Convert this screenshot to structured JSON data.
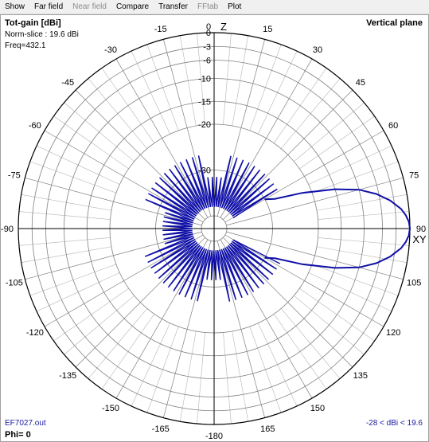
{
  "menu": {
    "items": [
      {
        "label": "Show",
        "enabled": true
      },
      {
        "label": "Far field",
        "enabled": true
      },
      {
        "label": "Near field",
        "enabled": false
      },
      {
        "label": "Compare",
        "enabled": true
      },
      {
        "label": "Transfer",
        "enabled": true
      },
      {
        "label": "FFtab",
        "enabled": false
      },
      {
        "label": "Plot",
        "enabled": true
      }
    ]
  },
  "info": {
    "title": "Tot-gain [dBi]",
    "norm_slice": "Norm-slice : 19.6 dBi",
    "freq": "Freq=432.1",
    "plane": "Vertical plane",
    "file": "EF7027.out",
    "phi": "Phi= 0",
    "range": "-28 < dBi < 19.6"
  },
  "colors": {
    "trace": "#1010a8",
    "grid": "#b4b4b4",
    "axis": "#000000"
  },
  "chart_data": {
    "type": "polar",
    "units": "dBi",
    "max_gain_dbi": 19.6,
    "min_gain_dbi": -28,
    "radial_labels": [
      "0",
      "-3",
      "-6",
      "-10",
      "-15",
      "-20",
      "-30"
    ],
    "radial_values": [
      0,
      -3,
      -6,
      -10,
      -15,
      -20,
      -30
    ],
    "angle_ticks": [
      0,
      15,
      30,
      45,
      60,
      75,
      90,
      105,
      120,
      135,
      150,
      165,
      180,
      -165,
      -150,
      -135,
      -120,
      -105,
      -90,
      -75,
      -60,
      -45,
      -30,
      -15
    ],
    "angle_labels": [
      "0",
      "15",
      "30",
      "45",
      "60",
      "75",
      "90",
      "105",
      "120",
      "135",
      "150",
      "165",
      "-180",
      "-165",
      "-150",
      "-135",
      "-120",
      "-105",
      "-90",
      "-75",
      "-60",
      "-45",
      "-30",
      "-15"
    ],
    "axis_labels": {
      "top": "Z",
      "right": "XY"
    },
    "main_lobe": {
      "direction_deg": 90,
      "angles_deg": [
        60,
        64,
        68,
        72,
        75,
        78,
        81,
        84,
        86,
        88,
        90,
        92,
        94,
        96,
        99,
        102,
        105,
        108,
        112,
        116,
        120
      ],
      "gain_db": [
        -30,
        -28,
        -22,
        -15,
        -10,
        -6.5,
        -3.8,
        -1.7,
        -0.8,
        -0.2,
        0,
        -0.2,
        -0.8,
        -1.7,
        -3.8,
        -6.5,
        -10,
        -15,
        -22,
        -28,
        -30
      ]
    }
  }
}
